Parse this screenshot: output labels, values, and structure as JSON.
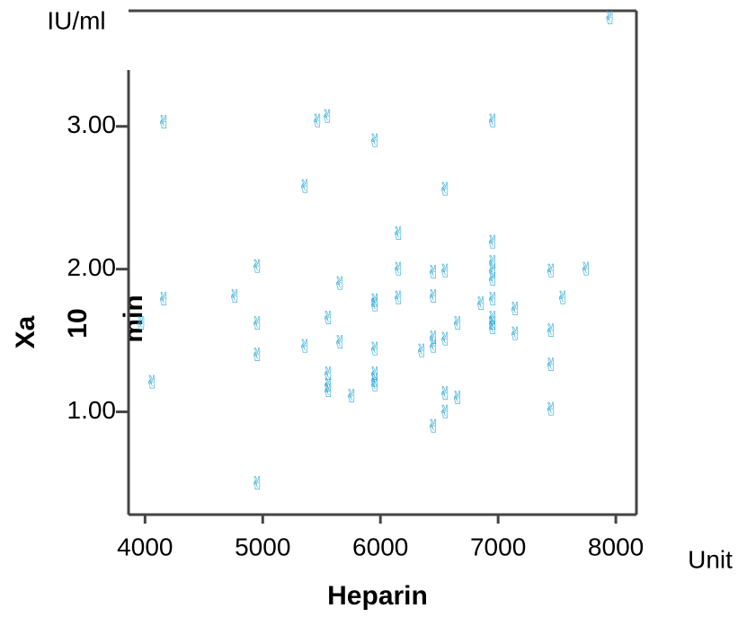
{
  "chart_data": {
    "type": "scatter",
    "x_label": "Heparin",
    "x_unit": "Unit",
    "y_label": [
      "Xa",
      "10",
      "min"
    ],
    "y_unit": "IU/ml",
    "color": "#2aa7d4",
    "xlim": [
      3860,
      8175
    ],
    "ylim": [
      0.28,
      3.81
    ],
    "xticks": [
      4000,
      5000,
      6000,
      7000,
      8000
    ],
    "yticks": [
      {
        "value": 1,
        "label": "1.00"
      },
      {
        "value": 2,
        "label": "2.00"
      },
      {
        "value": 3,
        "label": "3.00"
      }
    ],
    "x": [
      7950,
      4160,
      5466,
      5550,
      5954,
      6954,
      5359,
      6550,
      6153,
      6954,
      6954,
      6954,
      6954,
      4954,
      6153,
      6450,
      6550,
      7450,
      7748,
      5657,
      4160,
      4763,
      5954,
      5954,
      6153,
      6450,
      6855,
      6954,
      7550,
      7145,
      3970,
      5557,
      4954,
      6954,
      6954,
      6954,
      6656,
      6550,
      7145,
      7450,
      5657,
      5359,
      6450,
      6450,
      6351,
      5954,
      4954,
      7450,
      5557,
      5557,
      5557,
      5954,
      5954,
      5954,
      4061,
      5756,
      6550,
      6656,
      6550,
      7450,
      6450,
      4954
    ],
    "y": [
      3.75,
      3.02,
      3.03,
      3.06,
      2.89,
      3.03,
      2.57,
      2.55,
      2.24,
      2.18,
      2.04,
      1.98,
      1.92,
      2.01,
      1.99,
      1.97,
      1.98,
      1.98,
      1.99,
      1.89,
      1.78,
      1.8,
      1.74,
      1.77,
      1.79,
      1.8,
      1.75,
      1.78,
      1.79,
      1.71,
      1.61,
      1.65,
      1.61,
      1.65,
      1.61,
      1.58,
      1.61,
      1.5,
      1.54,
      1.56,
      1.48,
      1.45,
      1.51,
      1.45,
      1.42,
      1.43,
      1.39,
      1.32,
      1.26,
      1.18,
      1.14,
      1.26,
      1.21,
      1.18,
      1.2,
      1.1,
      1.12,
      1.09,
      0.99,
      1.01,
      0.89,
      0.49
    ]
  }
}
